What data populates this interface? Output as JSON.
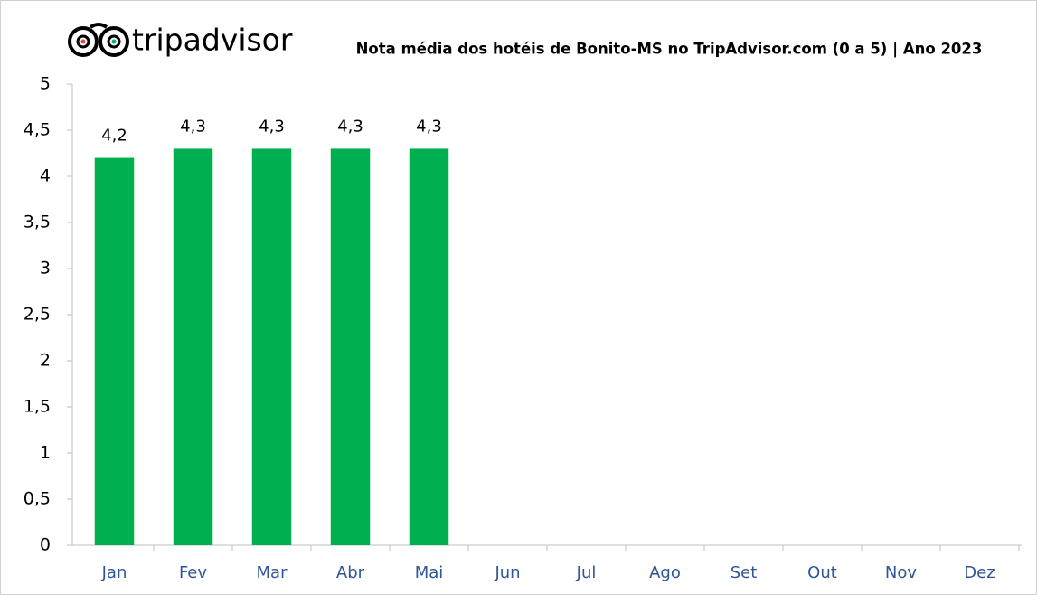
{
  "chart_data": {
    "type": "bar",
    "brand": "tripadvisor",
    "title": "Nota média dos hotéis de Bonito-MS no TripAdvisor.com (0 a 5) | Ano 2023",
    "categories": [
      "Jan",
      "Fev",
      "Mar",
      "Abr",
      "Mai",
      "Jun",
      "Jul",
      "Ago",
      "Set",
      "Out",
      "Nov",
      "Dez"
    ],
    "values": [
      4.2,
      4.3,
      4.3,
      4.3,
      4.3,
      null,
      null,
      null,
      null,
      null,
      null,
      null
    ],
    "value_labels": [
      "4,2",
      "4,3",
      "4,3",
      "4,3",
      "4,3",
      null,
      null,
      null,
      null,
      null,
      null,
      null
    ],
    "color": "#00b050",
    "ylim": [
      0,
      5
    ],
    "yticks": [
      0,
      {
        "value": 0.5,
        "label": "0,5"
      },
      1,
      {
        "value": 1.5,
        "label": "1,5"
      },
      2,
      {
        "value": 2.5,
        "label": "2,5"
      },
      3,
      {
        "value": 3.5,
        "label": "3,5"
      },
      4,
      {
        "value": 4.5,
        "label": "4,5"
      },
      5
    ],
    "grid": false
  }
}
